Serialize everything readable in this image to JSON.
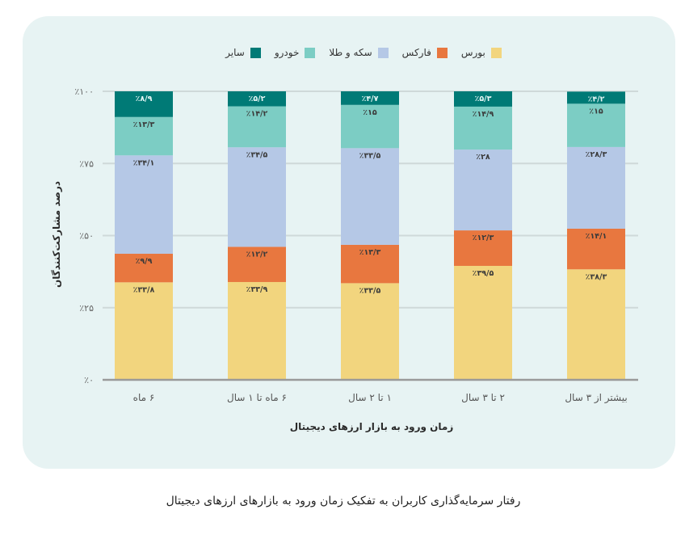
{
  "chart_data": {
    "type": "bar",
    "stacked": true,
    "title": "",
    "xlabel": "زمان ورود به بازار ارزهای دیجیتال",
    "ylabel": "درصد مشارکت‌کنندگان",
    "ylim": [
      0,
      100
    ],
    "yticks": [
      0,
      25,
      50,
      75,
      100
    ],
    "ytick_labels": [
      "٪۰",
      "٪۲۵",
      "٪۵۰",
      "٪۷۵",
      "٪۱۰۰"
    ],
    "grid": true,
    "legend_position": "top",
    "categories": [
      "۶ ماه",
      "۶ ماه تا ۱ سال",
      "۱ تا ۲ سال",
      "۲ تا ۳ سال",
      "بیشتر از ۳ سال"
    ],
    "series": [
      {
        "name": "بورس",
        "color": "#F2D57E",
        "label_color": "#3a3a3a",
        "values": [
          33.8,
          33.9,
          33.5,
          39.5,
          38.3
        ],
        "labels": [
          "٪۳۳/۸",
          "٪۳۳/۹",
          "٪۳۳/۵",
          "٪۳۹/۵",
          "٪۳۸/۳"
        ]
      },
      {
        "name": "فارکس",
        "color": "#E8773F",
        "label_color": "#3a3a3a",
        "values": [
          9.9,
          12.2,
          13.3,
          12.3,
          14.1
        ],
        "labels": [
          "٪۹/۹",
          "٪۱۲/۲",
          "٪۱۳/۳",
          "٪۱۲/۳",
          "٪۱۴/۱"
        ]
      },
      {
        "name": "سکه و طلا",
        "color": "#B5C8E6",
        "label_color": "#3a3a3a",
        "values": [
          34.1,
          34.5,
          33.5,
          28.0,
          28.3
        ],
        "labels": [
          "٪۳۴/۱",
          "٪۳۴/۵",
          "٪۳۳/۵",
          "٪۲۸",
          "٪۲۸/۳"
        ]
      },
      {
        "name": "خودرو",
        "color": "#7CCDC4",
        "label_color": "#3a3a3a",
        "values": [
          13.3,
          14.2,
          15.0,
          14.9,
          15.0
        ],
        "labels": [
          "٪۱۳/۳",
          "٪۱۴/۲",
          "٪۱۵",
          "٪۱۴/۹",
          "٪۱۵"
        ]
      },
      {
        "name": "سایر",
        "color": "#007A76",
        "label_color": "#e6f6f5",
        "values": [
          8.9,
          5.2,
          4.7,
          5.3,
          4.2
        ],
        "labels": [
          "٪۸/۹",
          "٪۵/۲",
          "٪۴/۷",
          "٪۵/۳",
          "٪۴/۲"
        ]
      }
    ]
  },
  "caption": "رفتار سرمایه‌گذاری کاربران به تفکیک زمان ورود به بازارهای ارزهای دیجیتال"
}
